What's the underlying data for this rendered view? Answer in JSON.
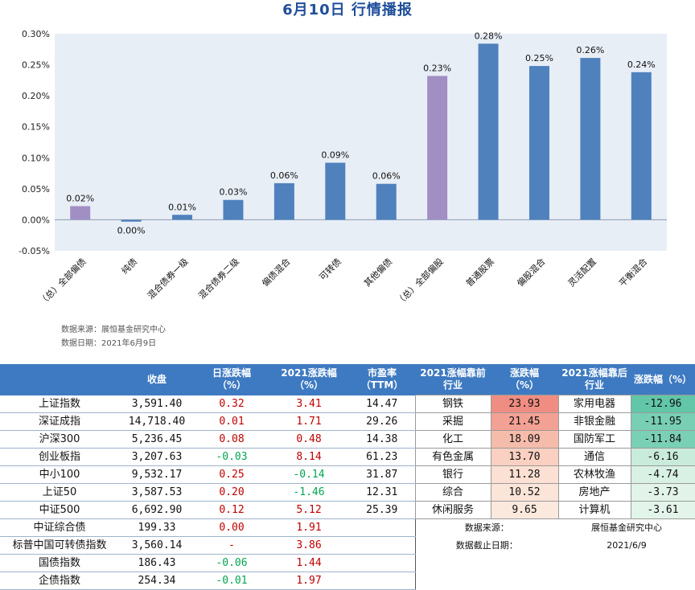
{
  "title": "6月10日  行情播报",
  "chart_data": {
    "type": "bar",
    "categories": [
      "（总）全部偏债",
      "纯债",
      "混合债券一级",
      "混合债券二级",
      "偏债混合",
      "可转债",
      "其他偏债",
      "（总）全部偏股",
      "普通股票",
      "偏股混合",
      "灵活配置",
      "平衡混合"
    ],
    "values": [
      0.0002,
      0.0,
      0.0001,
      0.0003,
      0.0006,
      0.0009,
      0.0006,
      0.0023,
      0.0028,
      0.0025,
      0.0026,
      0.0024
    ],
    "plot_values": [
      0.00022,
      -3e-05,
      8e-05,
      0.00032,
      0.00059,
      0.00092,
      0.00058,
      0.00232,
      0.00284,
      0.00248,
      0.00261,
      0.00238
    ],
    "data_labels": [
      "0.02%",
      "0.00%",
      "0.01%",
      "0.03%",
      "0.06%",
      "0.09%",
      "0.06%",
      "0.23%",
      "0.28%",
      "0.25%",
      "0.26%",
      "0.24%"
    ],
    "bar_colors": [
      "#a18fc4",
      "#4f81bd",
      "#4f81bd",
      "#4f81bd",
      "#4f81bd",
      "#4f81bd",
      "#4f81bd",
      "#a18fc4",
      "#4f81bd",
      "#4f81bd",
      "#4f81bd",
      "#4f81bd"
    ],
    "yticks": [
      0.003,
      0.0025,
      0.002,
      0.0015,
      0.001,
      0.0005,
      0.0,
      -0.0005
    ],
    "ytick_labels": [
      "0.30%",
      "0.25%",
      "0.20%",
      "0.15%",
      "0.10%",
      "0.05%",
      "0.00%",
      "-0.05%"
    ],
    "ylim": [
      -0.0005,
      0.003
    ],
    "plot_background": "#e8eef6",
    "grid": false
  },
  "source_lines": [
    "数据来源：展恒基金研究中心",
    "数据日期：2021年6月9日"
  ],
  "table": {
    "headers": {
      "name": "",
      "close": "收盘",
      "day_change": "日涨跌幅\n（%）",
      "ytd_change": "2021涨跌幅\n（%）",
      "pe": "市盈率\n（TTM）",
      "top_industry": "2021涨幅靠前\n行业",
      "top_pct": "涨跌幅\n（%）",
      "bottom_industry": "2021涨幅靠后\n行业",
      "bottom_pct": "涨跌幅（%）"
    },
    "rows": [
      {
        "name": "上证指数",
        "close": "3,591.40",
        "day": "0.32",
        "day_color": "red",
        "ytd": "3.41",
        "ytd_color": "red",
        "pe": "14.47",
        "ti": "钢铁",
        "tp": "23.93",
        "tc": "#f08d82",
        "bi": "家用电器",
        "bp": "-12.96",
        "bc": "#62c6a8"
      },
      {
        "name": "深证成指",
        "close": "14,718.40",
        "day": "0.01",
        "day_color": "red",
        "ytd": "1.71",
        "ytd_color": "red",
        "pe": "29.26",
        "ti": "采掘",
        "tp": "21.45",
        "tc": "#f3a194",
        "bi": "非银金融",
        "bp": "-11.95",
        "bc": "#78cfb3"
      },
      {
        "name": "沪深300",
        "close": "5,236.45",
        "day": "0.08",
        "day_color": "red",
        "ytd": "0.48",
        "ytd_color": "red",
        "pe": "14.38",
        "ti": "化工",
        "tp": "18.09",
        "tc": "#f6bcab",
        "bi": "国防军工",
        "bp": "-11.84",
        "bc": "#7ad0b5"
      },
      {
        "name": "创业板指",
        "close": "3,207.63",
        "day": "-0.03",
        "day_color": "green",
        "ytd": "8.14",
        "ytd_color": "red",
        "pe": "61.23",
        "ti": "有色金属",
        "tp": "13.70",
        "tc": "#f9d0c1",
        "bi": "通信",
        "bp": "-6.16",
        "bc": "#c9ebdc"
      },
      {
        "name": "中小100",
        "close": "9,532.17",
        "day": "0.25",
        "day_color": "red",
        "ytd": "-0.14",
        "ytd_color": "green",
        "pe": "31.87",
        "ti": "银行",
        "tp": "11.28",
        "tc": "#fbe0d3",
        "bi": "农林牧渔",
        "bp": "-4.74",
        "bc": "#d9f1e5"
      },
      {
        "name": "上证50",
        "close": "3,587.53",
        "day": "0.20",
        "day_color": "red",
        "ytd": "-1.46",
        "ytd_color": "green",
        "pe": "12.31",
        "ti": "综合",
        "tp": "10.52",
        "tc": "#fbe4d8",
        "bi": "房地产",
        "bp": "-3.73",
        "bc": "#e2f4ea"
      },
      {
        "name": "中证500",
        "close": "6,692.90",
        "day": "0.12",
        "day_color": "red",
        "ytd": "5.12",
        "ytd_color": "red",
        "pe": "25.39",
        "ti": "休闲服务",
        "tp": "9.65",
        "tc": "#fce9dd",
        "bi": "计算机",
        "bp": "-3.61",
        "bc": "#e3f5eb"
      }
    ],
    "bond_rows": [
      {
        "name": "中证综合债",
        "close": "199.33",
        "day": "0.00",
        "day_color": "red",
        "ytd": "1.91",
        "ytd_color": "red",
        "note_label": "数据来源：",
        "note_value": "展恒基金研究中心"
      },
      {
        "name": "标普中国可转债指数",
        "close": "3,560.14",
        "day": "-",
        "day_color": "red",
        "ytd": "3.86",
        "ytd_color": "red",
        "note_label": "数据截止日期：",
        "note_value": "2021/6/9"
      },
      {
        "name": "国债指数",
        "close": "186.43",
        "day": "-0.06",
        "day_color": "green",
        "ytd": "1.44",
        "ytd_color": "red",
        "note_label": "",
        "note_value": ""
      },
      {
        "name": "企债指数",
        "close": "254.34",
        "day": "-0.01",
        "day_color": "green",
        "ytd": "1.97",
        "ytd_color": "red",
        "note_label": "",
        "note_value": ""
      }
    ]
  }
}
